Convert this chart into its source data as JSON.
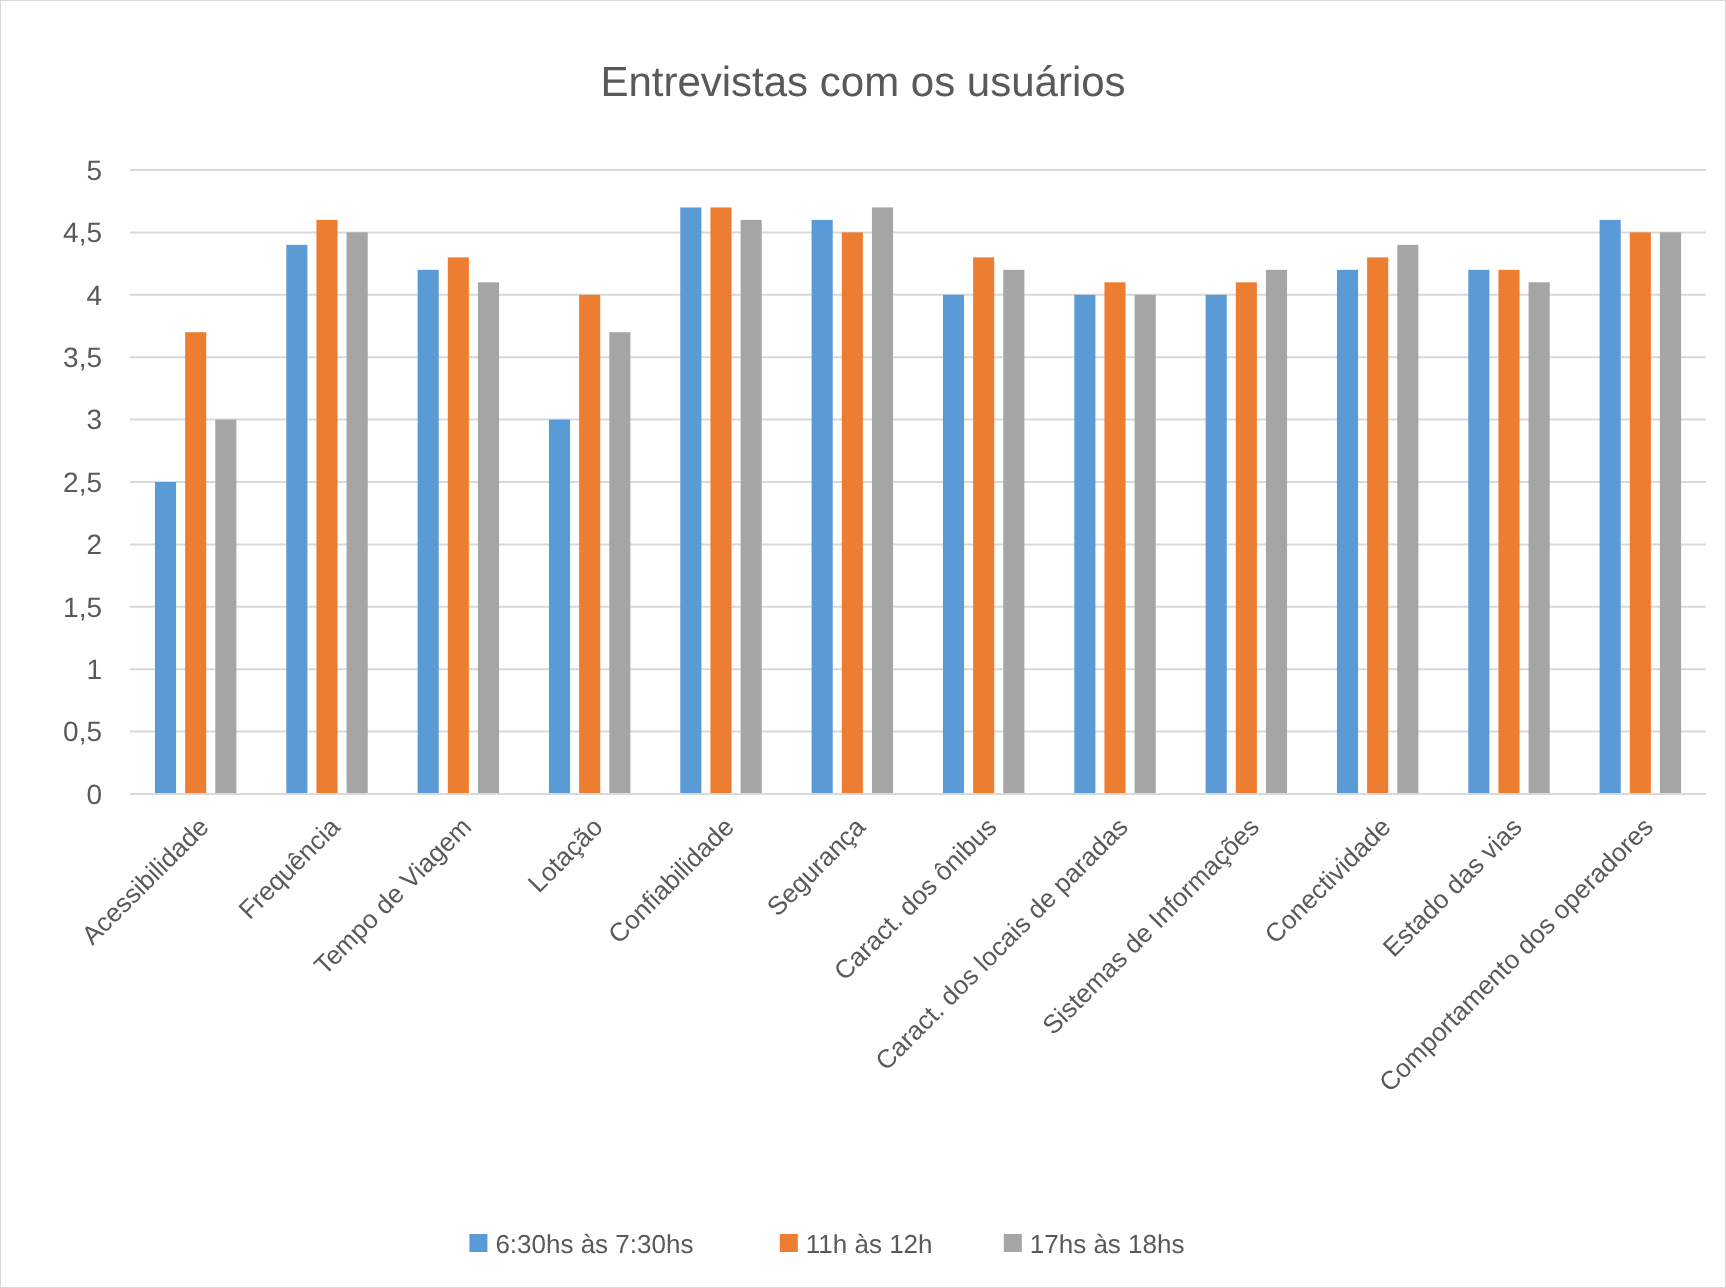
{
  "chart_data": {
    "type": "bar",
    "title": "Entrevistas com os usuários",
    "categories": [
      "Acessibilidade",
      "Frequência",
      "Tempo de Viagem",
      "Lotação",
      "Confiabilidade",
      "Segurança",
      "Caract. dos ônibus",
      "Caract. dos locais de paradas",
      "Sistemas de Informações",
      "Conectividade",
      "Estado das vias",
      "Comportamento dos operadores"
    ],
    "series": [
      {
        "name": "6:30hs às 7:30hs",
        "color": "#5b9bd5",
        "values": [
          2.5,
          4.4,
          4.2,
          3.0,
          4.7,
          4.6,
          4.0,
          4.0,
          4.0,
          4.2,
          4.2,
          4.6
        ]
      },
      {
        "name": "11h às 12h",
        "color": "#ed7d31",
        "values": [
          3.7,
          4.6,
          4.3,
          4.0,
          4.7,
          4.5,
          4.3,
          4.1,
          4.1,
          4.3,
          4.2,
          4.5
        ]
      },
      {
        "name": "17hs às 18hs",
        "color": "#a5a5a5",
        "values": [
          3.0,
          4.5,
          4.1,
          3.7,
          4.6,
          4.7,
          4.2,
          4.0,
          4.2,
          4.4,
          4.1,
          4.5
        ]
      }
    ],
    "ylim": [
      0,
      5
    ],
    "yticks": [
      0,
      {
        "value": 0.5,
        "label": "0,5"
      },
      1,
      {
        "value": 1.5,
        "label": "1,5"
      },
      2,
      {
        "value": 2.5,
        "label": "2,5"
      },
      3,
      {
        "value": 3.5,
        "label": "3,5"
      },
      4,
      {
        "value": 4.5,
        "label": "4,5"
      },
      5
    ],
    "grid": "y",
    "legend": "bottom"
  }
}
